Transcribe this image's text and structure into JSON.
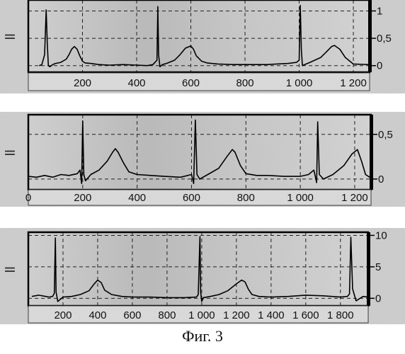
{
  "caption": "Фиг. 3",
  "chart_data": [
    {
      "type": "line",
      "xlim": [
        0,
        1260
      ],
      "ylim": [
        -0.12,
        1.2
      ],
      "xticks": [
        {
          "value": 200,
          "label": "200"
        },
        {
          "value": 400,
          "label": "400"
        },
        {
          "value": 600,
          "label": "600"
        },
        {
          "value": 800,
          "label": "800"
        },
        {
          "value": 1000,
          "label": "1 000"
        },
        {
          "value": 1200,
          "label": "1 200"
        }
      ],
      "yticks": [
        {
          "value": 0,
          "label": "0"
        },
        {
          "value": 0.5,
          "label": "0,5"
        },
        {
          "value": 1,
          "label": "1"
        }
      ],
      "side_marker": "=",
      "grid": true,
      "series": [
        {
          "x": [
            40,
            50,
            60,
            66,
            70,
            74,
            80,
            90,
            100,
            120,
            140,
            150,
            160,
            170,
            180,
            190,
            200,
            210,
            230,
            260,
            300,
            350,
            400,
            440,
            460,
            475,
            478,
            481,
            486,
            495,
            510,
            540,
            560,
            580,
            600,
            610,
            620,
            640,
            660,
            700,
            760,
            800,
            880,
            960,
            990,
            1000,
            1004,
            1008,
            1012,
            1020,
            1040,
            1080,
            1100,
            1120,
            1130,
            1150,
            1170,
            1200,
            1255
          ],
          "y": [
            0,
            0.02,
            0.2,
            1.02,
            0.4,
            0,
            -0.02,
            0.02,
            0.04,
            0.06,
            0.12,
            0.2,
            0.3,
            0.35,
            0.3,
            0.18,
            0.08,
            0.05,
            0.04,
            0.02,
            0.01,
            0.02,
            0.01,
            0.0,
            0.02,
            0.1,
            1.08,
            0.2,
            -0.02,
            0.02,
            0.04,
            0.1,
            0.2,
            0.32,
            0.36,
            0.3,
            0.18,
            0.08,
            0.05,
            0.03,
            0.02,
            0.02,
            0.02,
            0.04,
            0.06,
            0.1,
            1.1,
            0.3,
            0.0,
            0.02,
            0.06,
            0.15,
            0.25,
            0.35,
            0.37,
            0.3,
            0.15,
            0.03,
            0.02
          ]
        }
      ]
    },
    {
      "type": "line",
      "xlim": [
        0,
        1260
      ],
      "ylim": [
        -0.12,
        0.72
      ],
      "xticks": [
        {
          "value": 0,
          "label": "0"
        },
        {
          "value": 200,
          "label": "200"
        },
        {
          "value": 400,
          "label": "400"
        },
        {
          "value": 600,
          "label": "600"
        },
        {
          "value": 800,
          "label": "800"
        },
        {
          "value": 1000,
          "label": "1 000"
        },
        {
          "value": 1200,
          "label": "1 200"
        }
      ],
      "yticks": [
        {
          "value": 0,
          "label": "0"
        },
        {
          "value": 0.5,
          "label": "0,5"
        }
      ],
      "side_marker": "=",
      "grid": true,
      "series": [
        {
          "x": [
            0,
            30,
            60,
            90,
            120,
            150,
            180,
            190,
            196,
            200,
            204,
            210,
            230,
            260,
            290,
            310,
            320,
            330,
            350,
            370,
            400,
            450,
            500,
            560,
            600,
            608,
            614,
            620,
            630,
            660,
            700,
            730,
            750,
            760,
            780,
            800,
            840,
            880,
            940,
            1000,
            1030,
            1050,
            1060,
            1064,
            1070,
            1085,
            1120,
            1160,
            1190,
            1210,
            1225,
            1240,
            1255
          ],
          "y": [
            0.03,
            0.02,
            0.04,
            0.02,
            0.05,
            0.04,
            0.06,
            0.1,
            -0.05,
            0.65,
            0.05,
            -0.02,
            0.05,
            0.1,
            0.2,
            0.3,
            0.34,
            0.3,
            0.18,
            0.08,
            0.05,
            0.04,
            0.03,
            0.02,
            0.05,
            -0.05,
            0.66,
            0.05,
            0.0,
            0.05,
            0.12,
            0.25,
            0.33,
            0.3,
            0.15,
            0.06,
            0.04,
            0.04,
            0.03,
            0.03,
            0.05,
            0.1,
            -0.04,
            0.64,
            0.05,
            0.0,
            0.05,
            0.15,
            0.28,
            0.33,
            0.2,
            0.05,
            0.02
          ]
        }
      ]
    },
    {
      "type": "line",
      "xlim": [
        0,
        1960
      ],
      "ylim": [
        -1.2,
        10.5
      ],
      "xticks": [
        {
          "value": 200,
          "label": "200"
        },
        {
          "value": 400,
          "label": "400"
        },
        {
          "value": 600,
          "label": "600"
        },
        {
          "value": 800,
          "label": "800"
        },
        {
          "value": 1000,
          "label": "1 000"
        },
        {
          "value": 1200,
          "label": "1 200"
        },
        {
          "value": 1400,
          "label": "1 400"
        },
        {
          "value": 1600,
          "label": "1 600"
        },
        {
          "value": 1800,
          "label": "1 800"
        }
      ],
      "yticks": [
        {
          "value": 0,
          "label": "0"
        },
        {
          "value": 5,
          "label": "5"
        },
        {
          "value": 10,
          "label": "10"
        }
      ],
      "side_marker": "=",
      "grid": true,
      "series": [
        {
          "x": [
            20,
            60,
            100,
            120,
            140,
            150,
            156,
            160,
            170,
            200,
            250,
            300,
            350,
            380,
            400,
            420,
            440,
            480,
            540,
            600,
            700,
            800,
            900,
            970,
            980,
            990,
            994,
            1000,
            1010,
            1050,
            1100,
            1150,
            1200,
            1230,
            1250,
            1270,
            1290,
            1330,
            1400,
            1500,
            1600,
            1700,
            1800,
            1840,
            1852,
            1860,
            1870,
            1890,
            1930,
            1955
          ],
          "y": [
            0.3,
            0.5,
            0.3,
            0.2,
            0.3,
            0.8,
            9.6,
            1.0,
            -0.5,
            0.2,
            0.3,
            0.6,
            1.2,
            2.3,
            2.9,
            2.5,
            1.3,
            0.6,
            0.3,
            0.2,
            0.2,
            0.1,
            0.1,
            0.2,
            0.6,
            9.8,
            1.0,
            -0.5,
            0.1,
            0.3,
            0.6,
            1.2,
            2.3,
            2.9,
            2.6,
            1.4,
            0.6,
            0.3,
            0.2,
            0.3,
            0.5,
            0.4,
            0.2,
            0.3,
            0.7,
            9.7,
            1.5,
            -0.4,
            0.3,
            0.2
          ]
        }
      ]
    }
  ]
}
